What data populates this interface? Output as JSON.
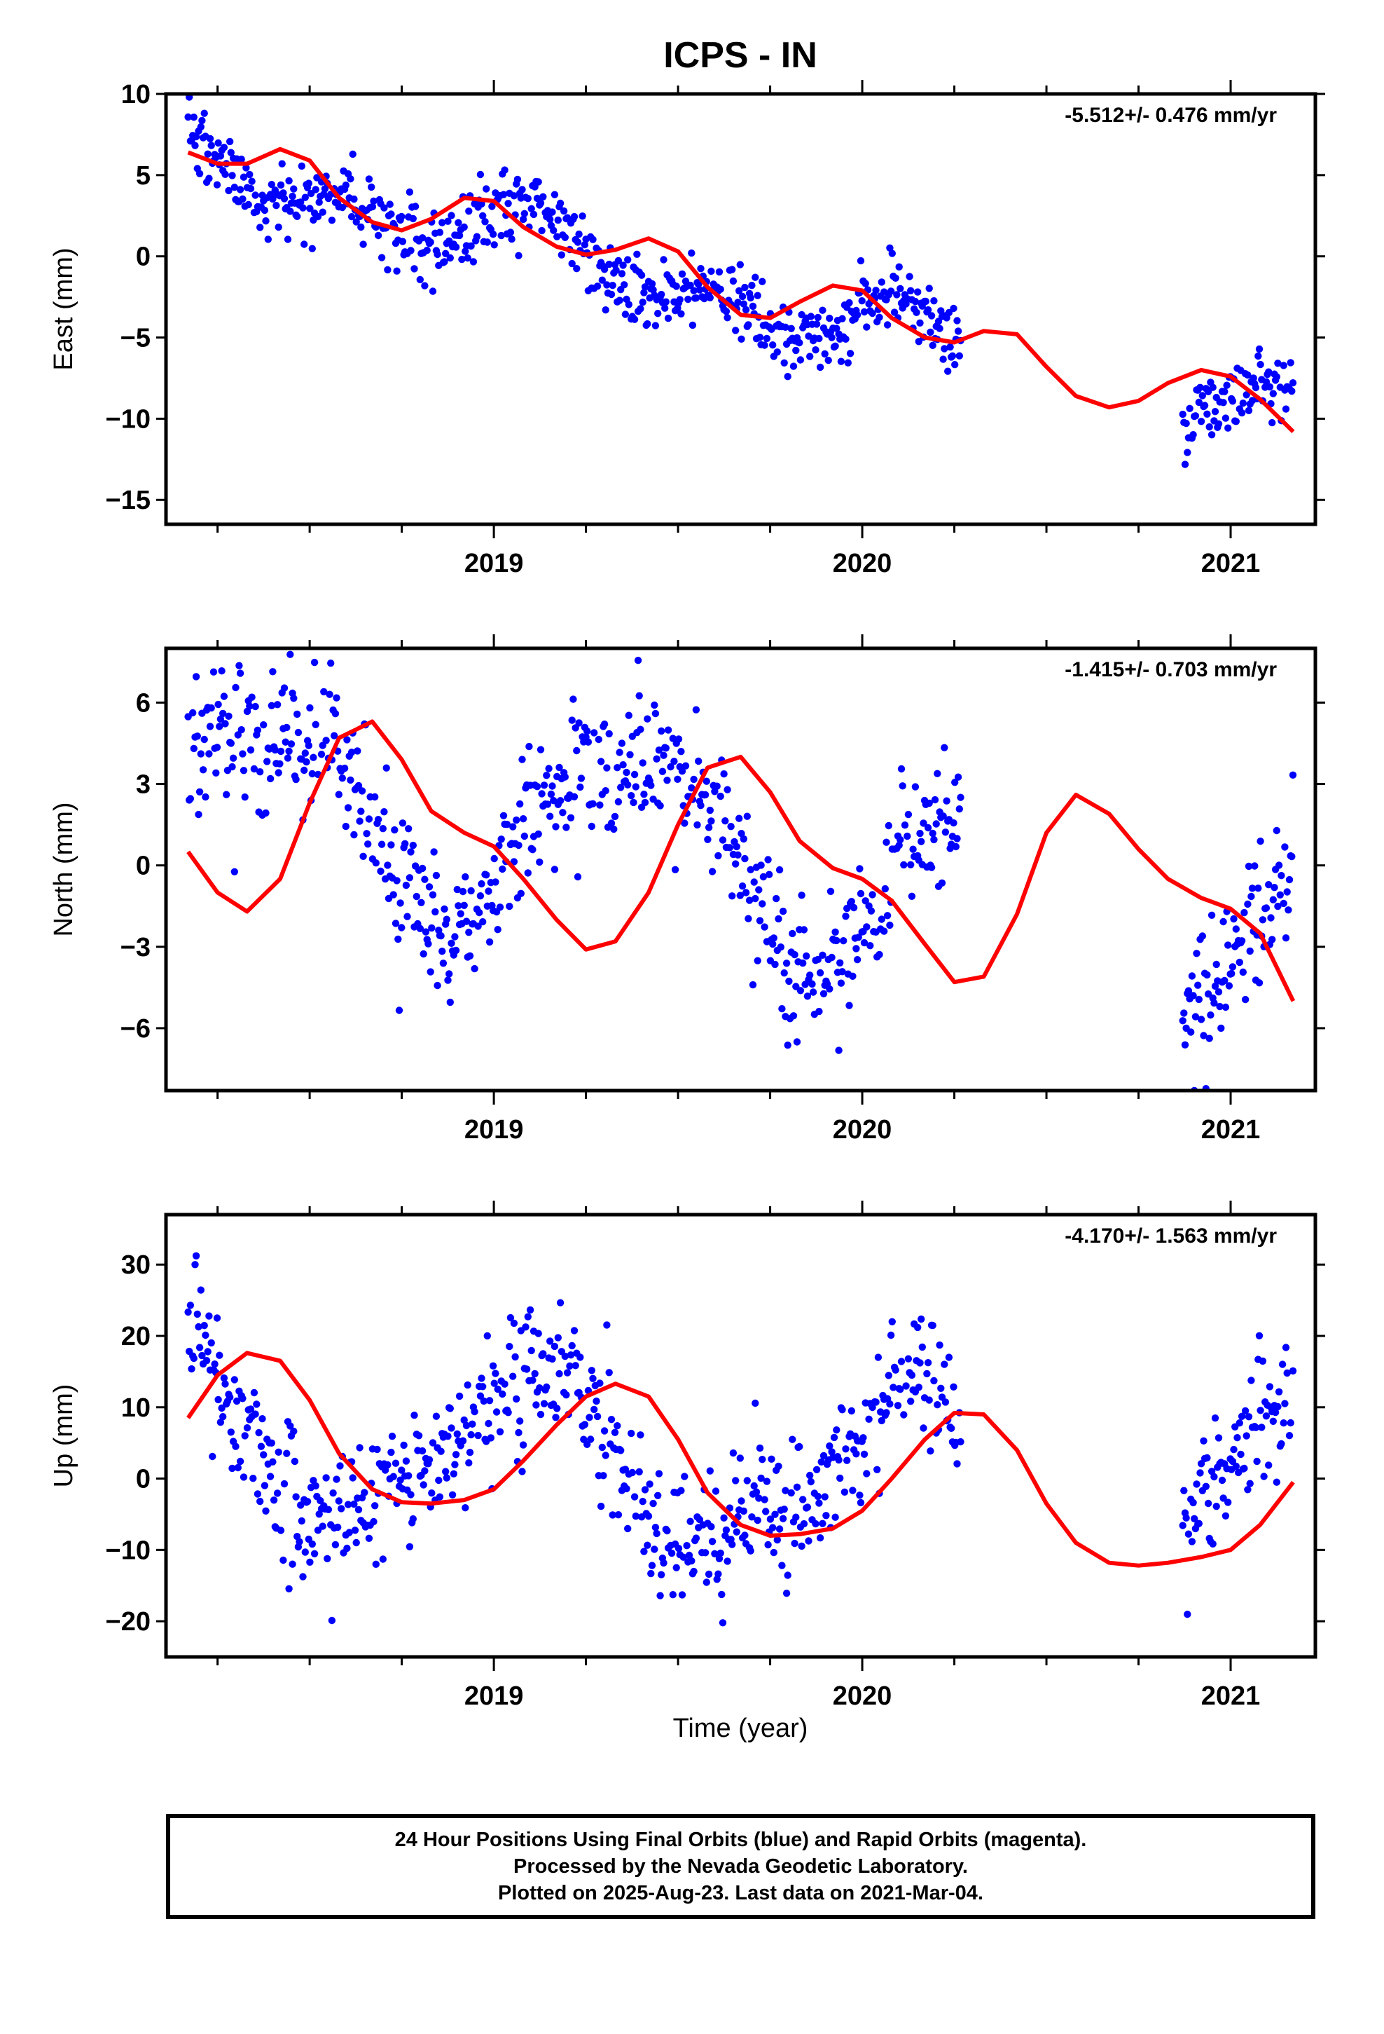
{
  "title": "ICPS - IN",
  "xlabel": "Time (year)",
  "footer": {
    "line1": "24 Hour Positions Using Final Orbits (blue) and Rapid Orbits (magenta).",
    "line2": "Processed by the Nevada Geodetic Laboratory.",
    "line3": "Plotted on 2025-Aug-23. Last data on 2021-Mar-04."
  },
  "colors": {
    "points": "#0000ff",
    "fit": "#ff0000",
    "frame": "#000000"
  },
  "chart_data": [
    {
      "type": "scatter",
      "name": "East",
      "ylabel": "East (mm)",
      "rate_label": "-5.512+/- 0.476 mm/yr",
      "xlim": [
        2018.11,
        2021.23
      ],
      "ylim": [
        -16.5,
        10.0
      ],
      "yticks": [
        -15,
        -10,
        -5,
        0,
        5,
        10
      ],
      "ytick_labels": [
        "−15",
        "−10",
        "−5",
        "0",
        "5",
        "10"
      ],
      "xticks": [
        2019,
        2020,
        2021
      ],
      "xtick_labels": [
        "2019",
        "2020",
        "2021"
      ],
      "segments": [
        [
          2018.17,
          2020.27
        ],
        [
          2020.87,
          2021.17
        ]
      ],
      "model": {
        "t0": 2019.7,
        "slope": -5.512,
        "offset": -2.7,
        "a1": 1.3,
        "p1": 0.8,
        "a2": 1.3,
        "p2": 0.3,
        "noise": 1.1
      },
      "fit": [
        [
          2018.17,
          6.4
        ],
        [
          2018.25,
          5.7
        ],
        [
          2018.33,
          5.7
        ],
        [
          2018.42,
          6.6
        ],
        [
          2018.5,
          5.9
        ],
        [
          2018.58,
          3.6
        ],
        [
          2018.67,
          2.1
        ],
        [
          2018.75,
          1.6
        ],
        [
          2018.83,
          2.3
        ],
        [
          2018.92,
          3.6
        ],
        [
          2019.0,
          3.4
        ],
        [
          2019.08,
          1.8
        ],
        [
          2019.17,
          0.6
        ],
        [
          2019.25,
          0.1
        ],
        [
          2019.33,
          0.4
        ],
        [
          2019.42,
          1.1
        ],
        [
          2019.5,
          0.3
        ],
        [
          2019.58,
          -1.9
        ],
        [
          2019.67,
          -3.6
        ],
        [
          2019.75,
          -3.8
        ],
        [
          2019.83,
          -2.8
        ],
        [
          2019.92,
          -1.8
        ],
        [
          2020.0,
          -2.1
        ],
        [
          2020.08,
          -3.8
        ],
        [
          2020.17,
          -5.0
        ],
        [
          2020.25,
          -5.3
        ],
        [
          2020.33,
          -4.6
        ],
        [
          2020.42,
          -4.8
        ],
        [
          2020.5,
          -6.8
        ],
        [
          2020.58,
          -8.6
        ],
        [
          2020.67,
          -9.3
        ],
        [
          2020.75,
          -8.9
        ],
        [
          2020.83,
          -7.8
        ],
        [
          2020.92,
          -7.0
        ],
        [
          2021.0,
          -7.4
        ],
        [
          2021.08,
          -8.8
        ],
        [
          2021.17,
          -10.8
        ]
      ]
    },
    {
      "type": "scatter",
      "name": "North",
      "ylabel": "North (mm)",
      "rate_label": "-1.415+/- 0.703 mm/yr",
      "xlim": [
        2018.11,
        2021.23
      ],
      "ylim": [
        -8.3,
        8.0
      ],
      "yticks": [
        -6,
        -3,
        0,
        3,
        6
      ],
      "ytick_labels": [
        "−6",
        "−3",
        "0",
        "3",
        "6"
      ],
      "xticks": [
        2019,
        2020,
        2021
      ],
      "xtick_labels": [
        "2019",
        "2020",
        "2021"
      ],
      "segments": [
        [
          2018.17,
          2020.27
        ],
        [
          2020.87,
          2021.17
        ]
      ],
      "model": {
        "t0": 2019.7,
        "slope": -1.415,
        "offset": 0.5,
        "a1": 3.5,
        "p1": -0.8,
        "a2": 0.9,
        "p2": 0.3,
        "noise": 1.3
      },
      "fit": [
        [
          2018.17,
          0.5
        ],
        [
          2018.25,
          -1.0
        ],
        [
          2018.33,
          -1.7
        ],
        [
          2018.42,
          -0.5
        ],
        [
          2018.5,
          2.3
        ],
        [
          2018.58,
          4.7
        ],
        [
          2018.67,
          5.3
        ],
        [
          2018.75,
          3.9
        ],
        [
          2018.83,
          2.0
        ],
        [
          2018.92,
          1.2
        ],
        [
          2019.0,
          0.7
        ],
        [
          2019.08,
          -0.5
        ],
        [
          2019.17,
          -2.0
        ],
        [
          2019.25,
          -3.1
        ],
        [
          2019.33,
          -2.8
        ],
        [
          2019.42,
          -1.0
        ],
        [
          2019.5,
          1.5
        ],
        [
          2019.58,
          3.6
        ],
        [
          2019.67,
          4.0
        ],
        [
          2019.75,
          2.7
        ],
        [
          2019.83,
          0.9
        ],
        [
          2019.92,
          -0.1
        ],
        [
          2020.0,
          -0.5
        ],
        [
          2020.08,
          -1.3
        ],
        [
          2020.17,
          -2.9
        ],
        [
          2020.25,
          -4.3
        ],
        [
          2020.33,
          -4.1
        ],
        [
          2020.42,
          -1.8
        ],
        [
          2020.5,
          1.2
        ],
        [
          2020.58,
          2.6
        ],
        [
          2020.67,
          1.9
        ],
        [
          2020.75,
          0.6
        ],
        [
          2020.83,
          -0.5
        ],
        [
          2020.92,
          -1.2
        ],
        [
          2021.0,
          -1.6
        ],
        [
          2021.08,
          -2.5
        ],
        [
          2021.17,
          -5.0
        ]
      ]
    },
    {
      "type": "scatter",
      "name": "Up",
      "ylabel": "Up (mm)",
      "rate_label": "-4.170+/- 1.563 mm/yr",
      "xlim": [
        2018.11,
        2021.23
      ],
      "ylim": [
        -25.0,
        37.0
      ],
      "yticks": [
        -20,
        -10,
        0,
        10,
        20,
        30
      ],
      "ytick_labels": [
        "−20",
        "−10",
        "0",
        "10",
        "20",
        "30"
      ],
      "xticks": [
        2019,
        2020,
        2021
      ],
      "xtick_labels": [
        "2019",
        "2020",
        "2021"
      ],
      "segments": [
        [
          2018.17,
          2020.27
        ],
        [
          2020.87,
          2021.17
        ]
      ],
      "model": {
        "t0": 2019.7,
        "slope": -4.17,
        "offset": 1.0,
        "a1": 11.0,
        "p1": 0.9,
        "a2": 3.0,
        "p2": -0.5,
        "noise": 5.0
      },
      "fit": [
        [
          2018.17,
          8.5
        ],
        [
          2018.25,
          14.5
        ],
        [
          2018.33,
          17.6
        ],
        [
          2018.42,
          16.5
        ],
        [
          2018.5,
          11.0
        ],
        [
          2018.58,
          3.5
        ],
        [
          2018.67,
          -1.5
        ],
        [
          2018.75,
          -3.3
        ],
        [
          2018.83,
          -3.5
        ],
        [
          2018.92,
          -3.0
        ],
        [
          2019.0,
          -1.5
        ],
        [
          2019.08,
          2.5
        ],
        [
          2019.17,
          7.5
        ],
        [
          2019.25,
          11.5
        ],
        [
          2019.33,
          13.3
        ],
        [
          2019.42,
          11.5
        ],
        [
          2019.5,
          5.5
        ],
        [
          2019.58,
          -2.0
        ],
        [
          2019.67,
          -6.5
        ],
        [
          2019.75,
          -8.0
        ],
        [
          2019.83,
          -7.8
        ],
        [
          2019.92,
          -7.0
        ],
        [
          2020.0,
          -4.5
        ],
        [
          2020.08,
          0.0
        ],
        [
          2020.17,
          5.5
        ],
        [
          2020.25,
          9.2
        ],
        [
          2020.33,
          9.0
        ],
        [
          2020.42,
          4.0
        ],
        [
          2020.5,
          -3.5
        ],
        [
          2020.58,
          -9.0
        ],
        [
          2020.67,
          -11.8
        ],
        [
          2020.75,
          -12.2
        ],
        [
          2020.83,
          -11.8
        ],
        [
          2020.92,
          -11.0
        ],
        [
          2021.0,
          -10.0
        ],
        [
          2021.08,
          -6.5
        ],
        [
          2021.17,
          -0.5
        ]
      ]
    }
  ]
}
